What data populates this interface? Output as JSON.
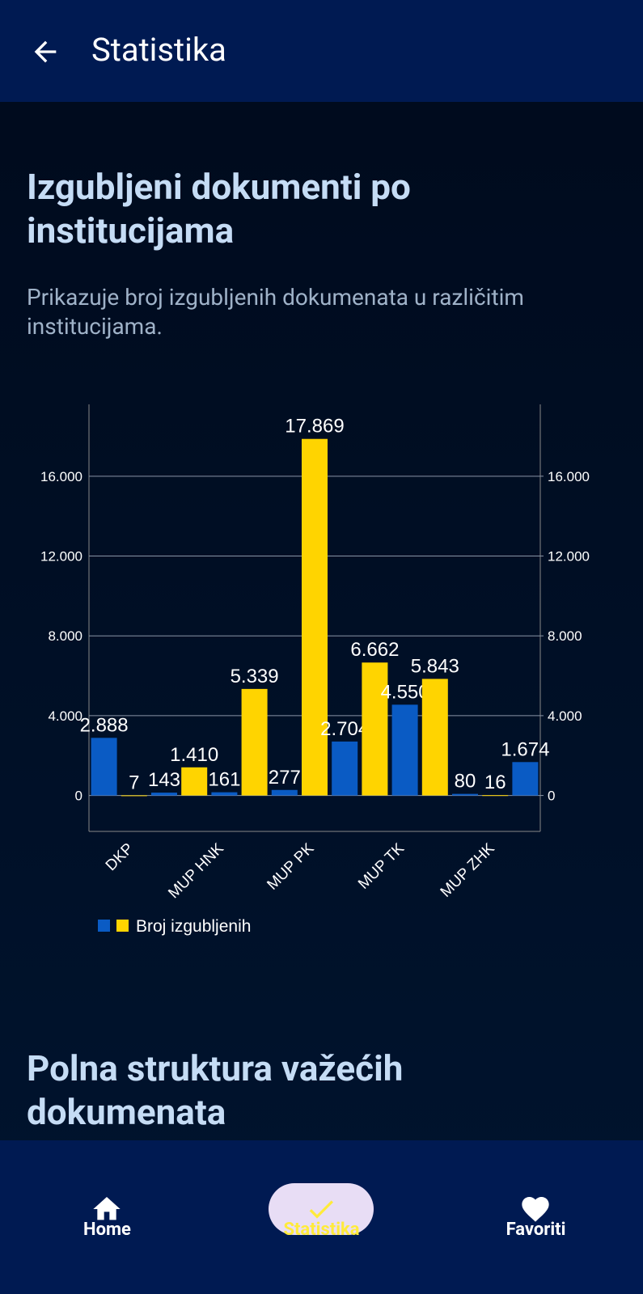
{
  "app_bar": {
    "title": "Statistika"
  },
  "section": {
    "title": "Izgubljeni dokumenti po institucijama",
    "description": "Prikazuje broj izgubljenih dokumenata u različitim institucijama."
  },
  "chart_data": {
    "type": "bar",
    "categories": [
      null,
      "DKP",
      null,
      null,
      "MUP HNK",
      null,
      null,
      "MUP PK",
      null,
      null,
      "MUP TK",
      null,
      null,
      "MUP ZHK",
      null
    ],
    "series": [
      {
        "name": "Broj izgubljenih",
        "colors": [
          "#0a5bc4",
          "#ffd400",
          "#0a5bc4",
          "#ffd400",
          "#0a5bc4",
          "#ffd400",
          "#0a5bc4",
          "#ffd400",
          "#0a5bc4",
          "#ffd400",
          "#0a5bc4",
          "#ffd400",
          "#0a5bc4",
          "#ffd400",
          "#0a5bc4"
        ],
        "values": [
          2888,
          7,
          143,
          1410,
          161,
          5339,
          277,
          17869,
          2704,
          6662,
          4550,
          5843,
          80,
          16,
          1674
        ],
        "value_labels": [
          "2.888",
          "7",
          "143",
          "1.410",
          "161",
          "5.339",
          "277",
          "17.869",
          "2.704",
          "6.662",
          "4.550",
          "5.843",
          "80",
          "16",
          "1.674"
        ]
      }
    ],
    "ylim": [
      -1800,
      19600
    ],
    "yticks": [
      0,
      {
        "value": 4000,
        "label": "4.000"
      },
      {
        "value": 8000,
        "label": "8.000"
      },
      {
        "value": 12000,
        "label": "12.000"
      },
      {
        "value": 16000,
        "label": "16.000"
      }
    ],
    "y2lim": [
      -1800,
      19600
    ],
    "y2ticks": [
      0,
      {
        "value": 4000,
        "label": "4.000"
      },
      {
        "value": 8000,
        "label": "8.000"
      },
      {
        "value": 12000,
        "label": "12.000"
      },
      {
        "value": 16000,
        "label": "16.000"
      }
    ],
    "grid": true
  },
  "next_section": {
    "title": "Polna struktura važećih dokumenata"
  },
  "bottom_nav": {
    "items": [
      {
        "label": "Home"
      },
      {
        "label": "Statistika",
        "active": true
      },
      {
        "label": "Favoriti"
      }
    ]
  }
}
